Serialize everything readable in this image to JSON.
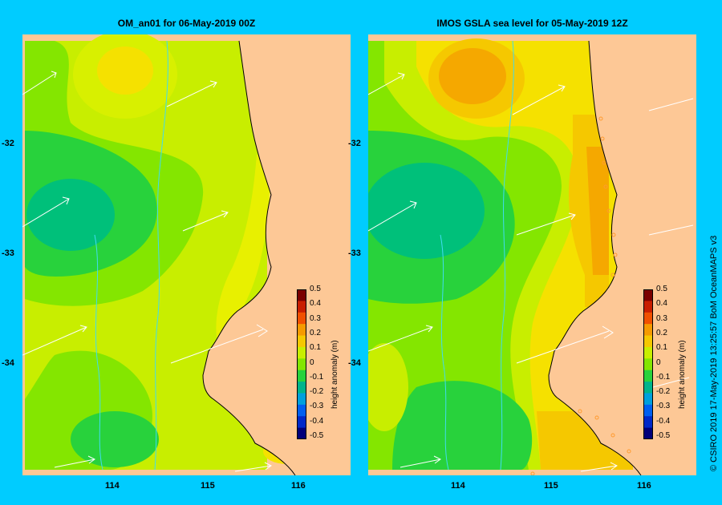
{
  "panels": [
    {
      "title": "OM_an01  for 06-May-2019 00Z"
    },
    {
      "title": "IMOS  GSLA sea level   for 05-May-2019 12Z"
    }
  ],
  "axes": {
    "lat_labels": [
      "-32",
      "-33",
      "-34"
    ],
    "lon_labels": [
      "114",
      "115",
      "116"
    ]
  },
  "colorbar": {
    "title": "height anomaly  (m)",
    "ticks": [
      "0.5",
      "0.4",
      "0.3",
      "0.2",
      "0.1",
      "0",
      "-0.1",
      "-0.2",
      "-0.3",
      "-0.4",
      "-0.5"
    ],
    "colors": [
      "#7a0000",
      "#c81e00",
      "#f05000",
      "#f59a00",
      "#f5c800",
      "#c8ee00",
      "#84e600",
      "#28d23c",
      "#00b48c",
      "#00a0dc",
      "#005ff0",
      "#0028c8",
      "#00007a"
    ]
  },
  "colors": {
    "background": "#00ccff",
    "land": "#fdc896",
    "river": "#40dcf0"
  },
  "credit": "© CSIRO 2019    17-May-2019 13:25:57 BoM OceanMAPS v3"
}
